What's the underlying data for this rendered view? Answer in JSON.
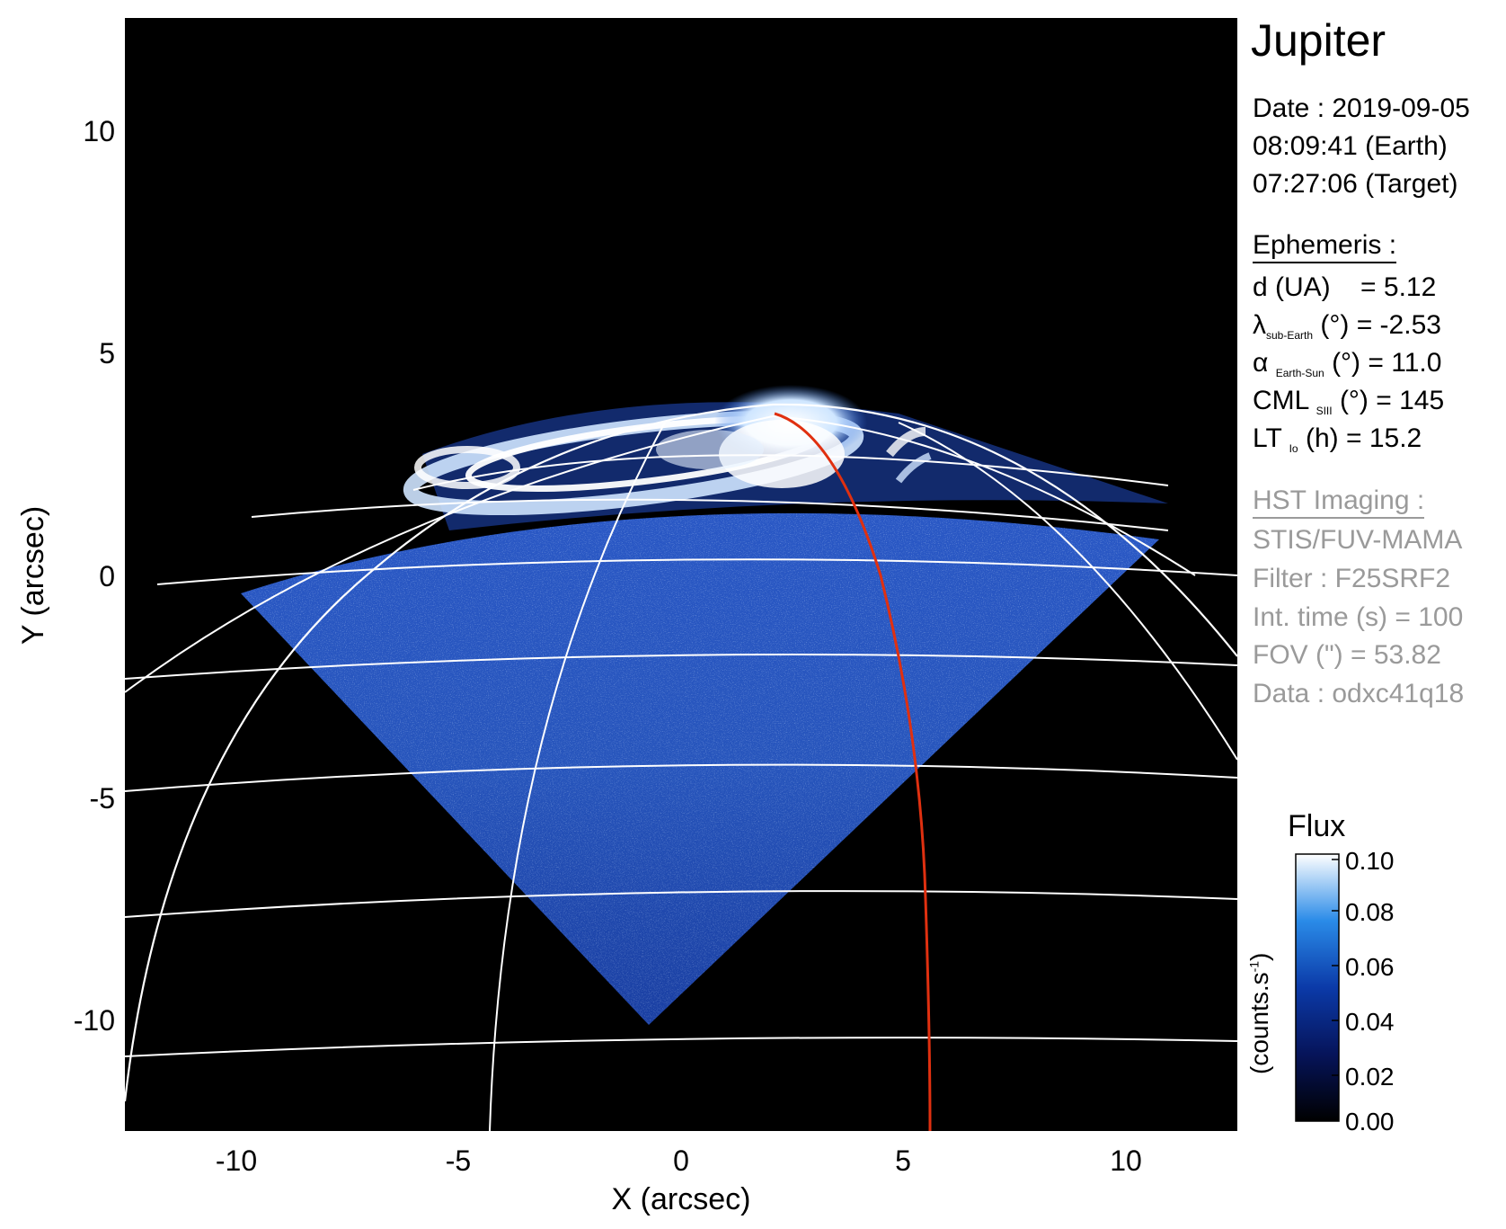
{
  "figure": {
    "title": "Jupiter",
    "observation": {
      "date": "Date : 2019-09-05",
      "time_earth": "08:09:41 (Earth)",
      "time_target": "07:27:06 (Target)"
    },
    "ephemeris": {
      "header": "Ephemeris :",
      "distance": {
        "label": "d (UA)",
        "value": "= 5.12"
      },
      "sub_earth_lat": {
        "symbol": "λ",
        "sub": "sub-Earth",
        "unit": "(°)",
        "value": "= -2.53"
      },
      "phase_angle": {
        "symbol": "α",
        "sub": "Earth-Sun",
        "unit": "(°)",
        "value": "= 11.0"
      },
      "cml": {
        "symbol": "CML",
        "sub": "SIII",
        "unit": "(°)",
        "value": "= 145"
      },
      "lt_io": {
        "symbol": "LT",
        "sub": "Io",
        "unit": "(h)",
        "value": "= 15.2"
      }
    },
    "instrument": {
      "header": "HST Imaging :",
      "camera": "STIS/FUV-MAMA",
      "filter": "Filter : F25SRF2",
      "int_time": "Int. time (s) = 100",
      "fov": "FOV (\") = 53.82",
      "data": "Data : odxc41q18"
    }
  },
  "image_axes": {
    "xlabel": "X (arcsec)",
    "ylabel": "Y (arcsec)",
    "xlim": [
      -12.5,
      12.5
    ],
    "ylim": [
      -12.5,
      12.5
    ],
    "xticks": [
      "-10",
      "-5",
      "0",
      "5",
      "10"
    ],
    "yticks": [
      "10",
      "5",
      "0",
      "-5",
      "-10"
    ]
  },
  "colorbar": {
    "title": "Flux",
    "unit_label": "(counts.s",
    "unit_sup": "-1",
    "unit_close": ")",
    "ticks": [
      "0.10",
      "0.08",
      "0.06",
      "0.04",
      "0.02",
      "0.00"
    ],
    "range": [
      0.0,
      0.1
    ]
  },
  "colors": {
    "background": "#000000",
    "low_flux": "#0a2a8a",
    "mid_flux": "#2f6fe0",
    "high_flux": "#ffffff",
    "grid": "#ffffff",
    "io_footpath": "#e03010"
  }
}
